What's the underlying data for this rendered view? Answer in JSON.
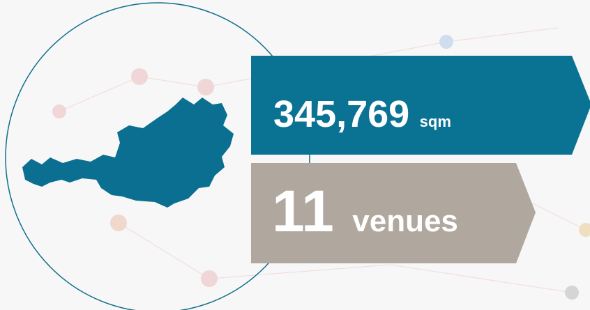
{
  "banners": [
    {
      "value": "345,769",
      "unit": "sqm"
    },
    {
      "value": "11",
      "unit": "venues"
    }
  ]
}
